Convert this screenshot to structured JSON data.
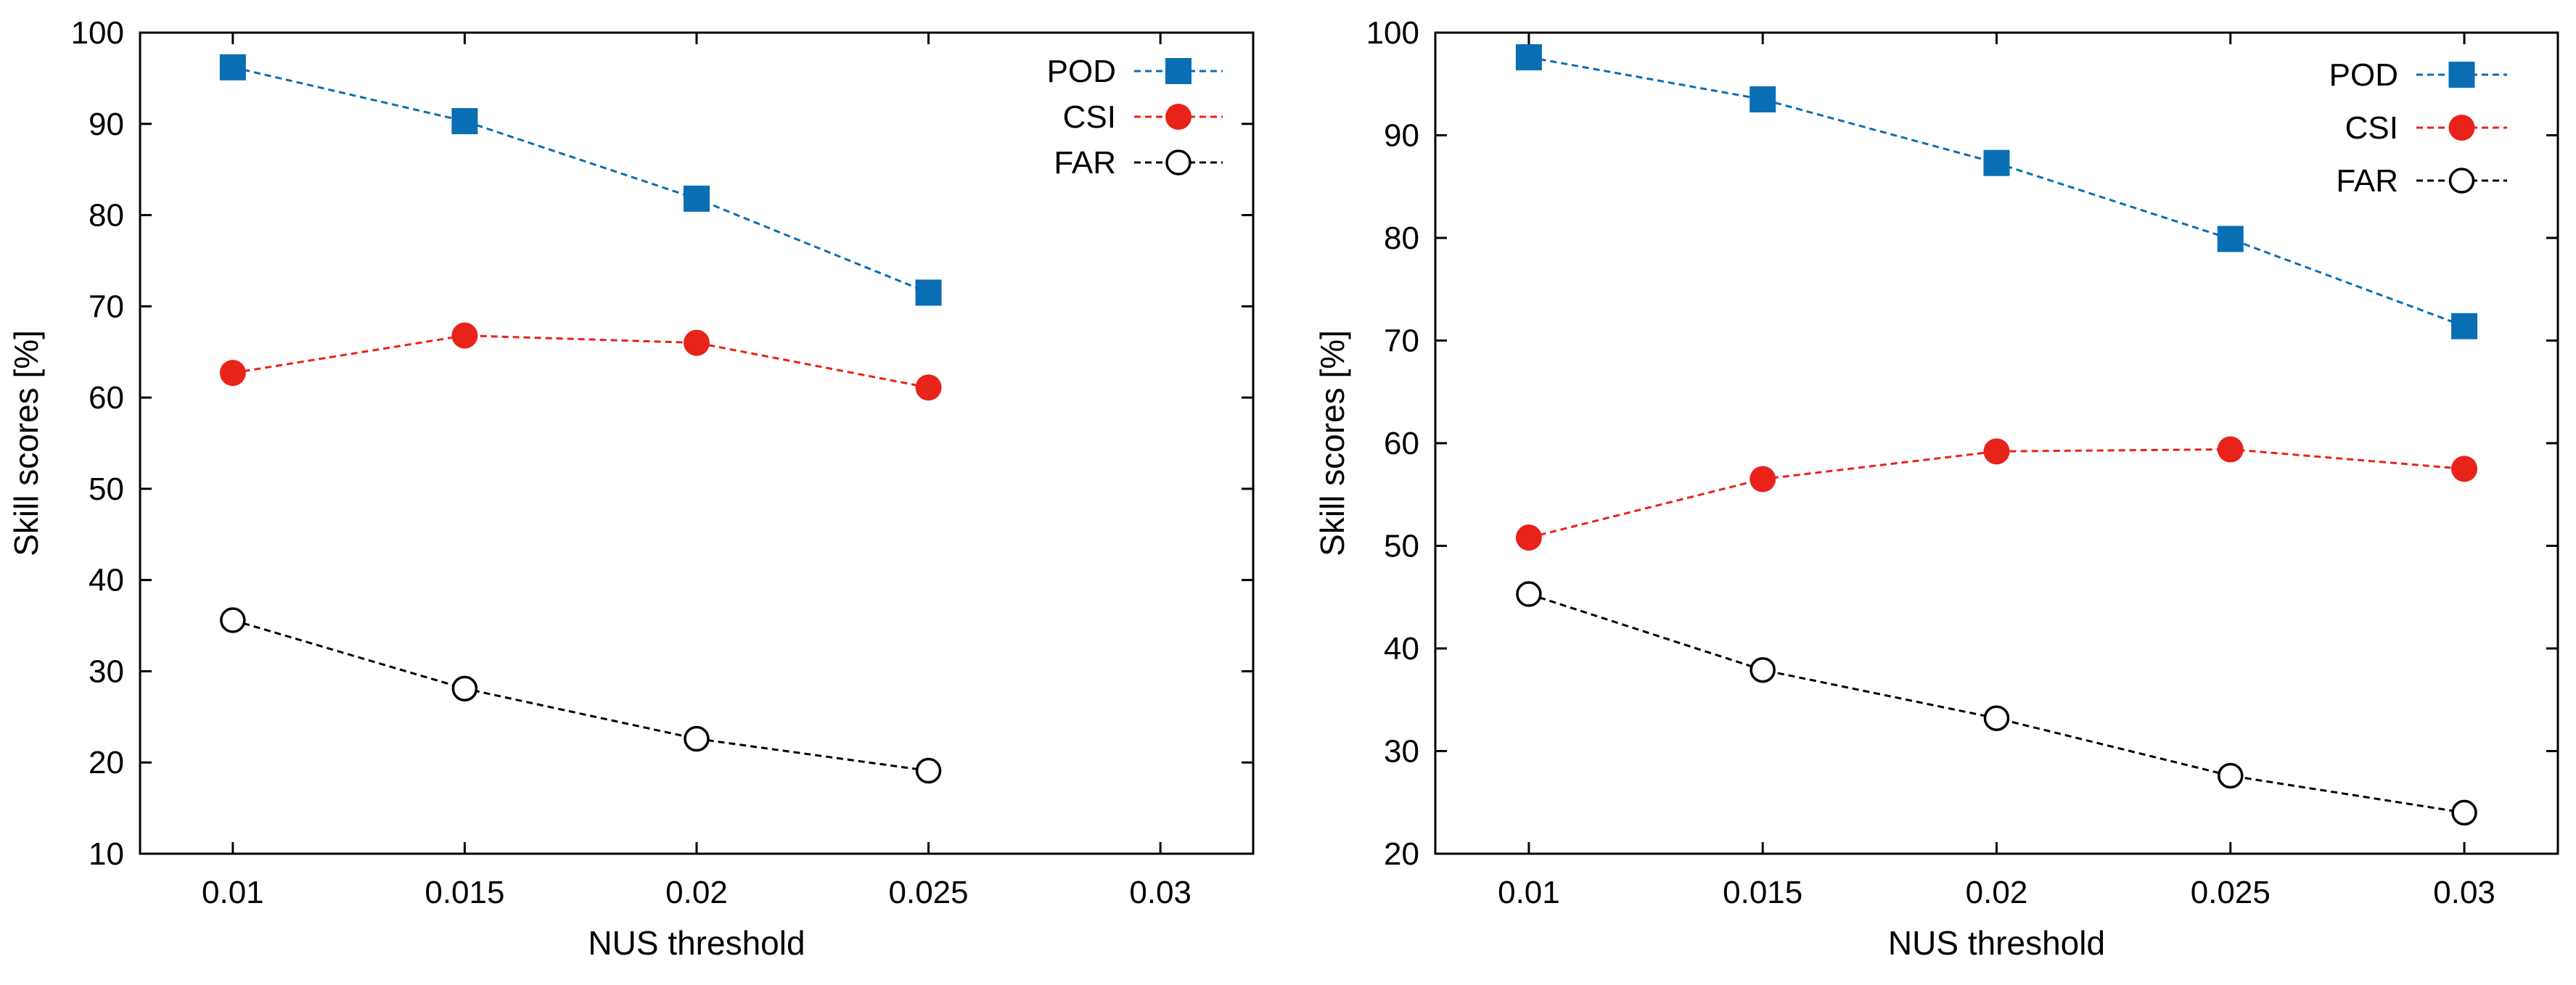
{
  "chart_data": [
    {
      "type": "line",
      "xlabel": "NUS threshold",
      "ylabel": "Skill scores [%]",
      "xlim": [
        0.008,
        0.032
      ],
      "ylim": [
        10,
        100
      ],
      "xticks": [
        "0.01",
        "0.015",
        "0.02",
        "0.025",
        "0.03"
      ],
      "yticks": [
        "10",
        "20",
        "30",
        "40",
        "50",
        "60",
        "70",
        "80",
        "90",
        "100"
      ],
      "grid": false,
      "legend": "top-right",
      "x": [
        0.01,
        0.015,
        0.02,
        0.025
      ],
      "series": [
        {
          "name": "POD",
          "values": [
            96.2,
            90.3,
            81.8,
            71.5
          ],
          "color": "#0a6eb4",
          "marker": "square-filled",
          "line": "dashed"
        },
        {
          "name": "CSI",
          "values": [
            62.7,
            66.8,
            66.0,
            61.1
          ],
          "color": "#e8231a",
          "marker": "circle-filled",
          "line": "dashed"
        },
        {
          "name": "FAR",
          "values": [
            35.6,
            28.1,
            22.6,
            19.1
          ],
          "color": "#000000",
          "marker": "circle-open",
          "line": "dashed"
        }
      ]
    },
    {
      "type": "line",
      "xlabel": "NUS threshold",
      "ylabel": "Skill scores [%]",
      "xlim": [
        0.008,
        0.032
      ],
      "ylim": [
        20,
        100
      ],
      "xticks": [
        "0.01",
        "0.015",
        "0.02",
        "0.025",
        "0.03"
      ],
      "yticks": [
        "20",
        "30",
        "40",
        "50",
        "60",
        "70",
        "80",
        "90",
        "100"
      ],
      "grid": false,
      "legend": "top-right",
      "x": [
        0.01,
        0.015,
        0.02,
        0.025,
        0.03
      ],
      "series": [
        {
          "name": "POD",
          "values": [
            97.6,
            93.5,
            87.3,
            79.9,
            71.4
          ],
          "color": "#0a6eb4",
          "marker": "square-filled",
          "line": "dashed"
        },
        {
          "name": "CSI",
          "values": [
            50.8,
            56.5,
            59.2,
            59.4,
            57.5
          ],
          "color": "#e8231a",
          "marker": "circle-filled",
          "line": "dashed"
        },
        {
          "name": "FAR",
          "values": [
            45.3,
            37.9,
            33.2,
            27.6,
            24.0
          ],
          "color": "#000000",
          "marker": "circle-open",
          "line": "dashed"
        }
      ]
    }
  ]
}
